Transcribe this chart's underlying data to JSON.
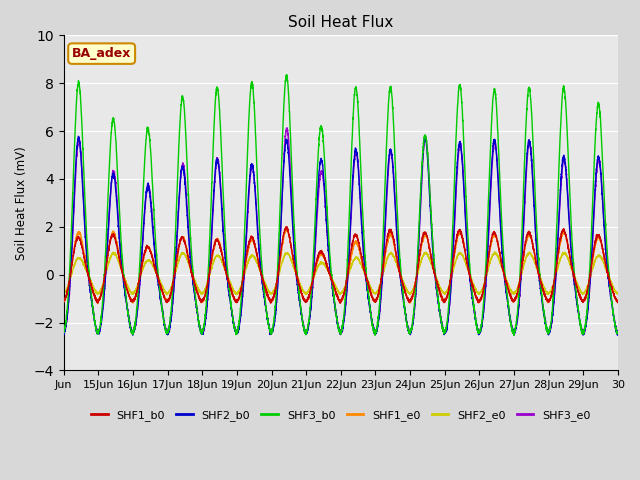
{
  "title": "Soil Heat Flux",
  "ylabel": "Soil Heat Flux (mV)",
  "xlabel": "",
  "ylim": [
    -4,
    10
  ],
  "xlim": [
    0,
    16
  ],
  "yticks": [
    -4,
    -2,
    0,
    2,
    4,
    6,
    8,
    10
  ],
  "xtick_labels": [
    "Jun",
    "15Jun",
    "16Jun",
    "17Jun",
    "18Jun",
    "19Jun",
    "20Jun",
    "21Jun",
    "22Jun",
    "23Jun",
    "24Jun",
    "25Jun",
    "26Jun",
    "27Jun",
    "28Jun",
    "29Jun",
    "30"
  ],
  "bg_color": "#d8d8d8",
  "plot_bg_color": "#e8e8e8",
  "series_colors": {
    "SHF1_b0": "#cc0000",
    "SHF2_b0": "#0000cc",
    "SHF3_b0": "#00cc00",
    "SHF1_e0": "#ff8800",
    "SHF2_e0": "#cccc00",
    "SHF3_e0": "#9900cc"
  },
  "series_linewidth": 1.0,
  "annotation_text": "BA_adex",
  "annotation_color": "#990000",
  "annotation_bg": "#ffffcc",
  "annotation_border": "#cc8800",
  "n_days": 16,
  "points_per_day": 288
}
